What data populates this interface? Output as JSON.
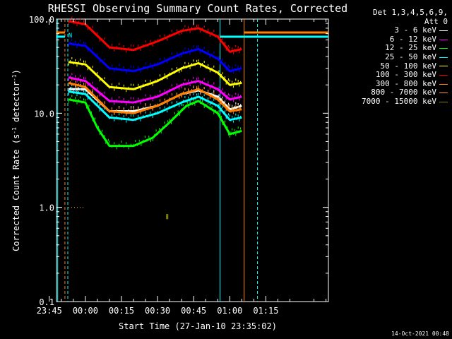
{
  "chart_data": {
    "type": "line",
    "title": "RHESSI Observing Summary Count Rates, Corrected",
    "xlabel": "Start Time (27-Jan-10 23:35:02)",
    "ylabel_main": "Corrected Count Rate (s",
    "ylabel_sup": "-1",
    "ylabel_mid": " detector",
    "ylabel_end": ")",
    "y_scale": "log",
    "ylim": [
      0.1,
      100.0
    ],
    "xlim_minutes": [
      -12,
      101
    ],
    "y_ticks": [
      {
        "value": 100.0,
        "label": "100.0"
      },
      {
        "value": 10.0,
        "label": "10.0"
      },
      {
        "value": 1.0,
        "label": "1.0"
      },
      {
        "value": 0.1,
        "label": "0.1"
      }
    ],
    "x_ticks": [
      {
        "minute": -15,
        "label": "23:45"
      },
      {
        "minute": 0,
        "label": "00:00"
      },
      {
        "minute": 15,
        "label": "00:15"
      },
      {
        "minute": 30,
        "label": "00:30"
      },
      {
        "minute": 45,
        "label": "00:45"
      },
      {
        "minute": 60,
        "label": "01:00"
      },
      {
        "minute": 75,
        "label": "01:15"
      }
    ],
    "legend_header": [
      "Det 1,3,4,5,6,9,",
      "Att 0"
    ],
    "series": [
      {
        "name": "3 - 6 keV",
        "color": "#ffffff",
        "points": [
          [
            -7,
            18
          ],
          [
            0,
            18
          ],
          [
            10,
            10.5
          ],
          [
            20,
            10.5
          ],
          [
            30,
            12
          ],
          [
            40,
            16
          ],
          [
            47,
            17.5
          ],
          [
            55,
            15
          ],
          [
            60,
            11
          ],
          [
            65,
            12
          ]
        ]
      },
      {
        "name": "6 - 12 keV",
        "color": "#ff00ff",
        "points": [
          [
            -7,
            24
          ],
          [
            0,
            22
          ],
          [
            10,
            13.5
          ],
          [
            20,
            13
          ],
          [
            30,
            15
          ],
          [
            40,
            20
          ],
          [
            47,
            22
          ],
          [
            55,
            18
          ],
          [
            60,
            14
          ],
          [
            65,
            15
          ]
        ]
      },
      {
        "name": "12 - 25 keV",
        "color": "#00ff00",
        "points": [
          [
            -7,
            14
          ],
          [
            0,
            13
          ],
          [
            5,
            7
          ],
          [
            10,
            4.5
          ],
          [
            20,
            4.5
          ],
          [
            28,
            5.5
          ],
          [
            35,
            8
          ],
          [
            42,
            12
          ],
          [
            47,
            13.5
          ],
          [
            55,
            10
          ],
          [
            60,
            6
          ],
          [
            65,
            6.5
          ]
        ]
      },
      {
        "name": "25 - 50 keV",
        "color": "#00ffff",
        "points": [
          [
            -7,
            17
          ],
          [
            0,
            16
          ],
          [
            10,
            9
          ],
          [
            20,
            8.5
          ],
          [
            30,
            10
          ],
          [
            40,
            13
          ],
          [
            47,
            15
          ],
          [
            55,
            12
          ],
          [
            60,
            8.5
          ],
          [
            65,
            9
          ]
        ]
      },
      {
        "name": "50 - 100 keV",
        "color": "#ffff00",
        "points": [
          [
            -7,
            35
          ],
          [
            0,
            33
          ],
          [
            10,
            19
          ],
          [
            20,
            18
          ],
          [
            30,
            22
          ],
          [
            40,
            30
          ],
          [
            47,
            34
          ],
          [
            55,
            27
          ],
          [
            60,
            20
          ],
          [
            65,
            21
          ]
        ]
      },
      {
        "name": "100 - 300 keV",
        "color": "#ff0000",
        "points": [
          [
            -7,
            95
          ],
          [
            0,
            88
          ],
          [
            10,
            50
          ],
          [
            20,
            47
          ],
          [
            30,
            58
          ],
          [
            40,
            75
          ],
          [
            47,
            80
          ],
          [
            55,
            65
          ],
          [
            60,
            45
          ],
          [
            65,
            48
          ]
        ]
      },
      {
        "name": "300 - 800 keV",
        "color": "#ff8000",
        "points": [
          [
            -7,
            21
          ],
          [
            0,
            19
          ],
          [
            10,
            10.5
          ],
          [
            20,
            10
          ],
          [
            30,
            12
          ],
          [
            40,
            16
          ],
          [
            47,
            18
          ],
          [
            55,
            14
          ],
          [
            60,
            10.5
          ],
          [
            65,
            11
          ]
        ]
      },
      {
        "name": "800 - 7000 keV",
        "color": "#ff9933",
        "points": [
          [
            -7,
            1.0
          ],
          [
            0,
            1.0
          ]
        ]
      },
      {
        "name": "7000 - 15000 keV",
        "color": "#808000",
        "points": [
          [
            34,
            0.85
          ],
          [
            34,
            0.75
          ]
        ]
      }
    ],
    "blue_series": {
      "color": "#0000ff",
      "points": [
        [
          -7,
          55
        ],
        [
          0,
          52
        ],
        [
          10,
          30
        ],
        [
          20,
          28
        ],
        [
          30,
          33
        ],
        [
          40,
          43
        ],
        [
          47,
          48
        ],
        [
          55,
          38
        ],
        [
          60,
          28
        ],
        [
          65,
          30
        ]
      ]
    },
    "attenuator_marks": {
      "left_label": "N",
      "color_cyan": "#00ffff",
      "color_orange": "#ff8000"
    },
    "footer_date": "14-Oct-2021 00:48"
  }
}
